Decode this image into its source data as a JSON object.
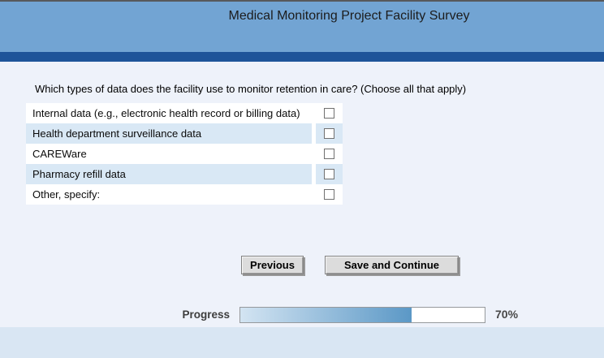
{
  "header": {
    "title": "Medical Monitoring Project Facility Survey"
  },
  "question": {
    "text": "Which types of data does the facility use to monitor retention in care? (Choose all that apply)",
    "options": [
      {
        "label": "Internal data (e.g., electronic health record or billing data)",
        "checked": false
      },
      {
        "label": "Health department surveillance data",
        "checked": false
      },
      {
        "label": "CAREWare",
        "checked": false
      },
      {
        "label": "Pharmacy refill data",
        "checked": false
      },
      {
        "label": "Other, specify:",
        "checked": false
      }
    ]
  },
  "buttons": {
    "previous": "Previous",
    "save_continue": "Save and Continue"
  },
  "progress": {
    "label": "Progress",
    "percent": 70,
    "percent_label": "70%"
  },
  "colors": {
    "header-bg": "#72a4d3",
    "accent-stripe": "#1e5499",
    "page-bg": "#eef2fa",
    "alt-row": "#d9e8f5",
    "bottom-band": "#d9e6f3",
    "progress-fill-start": "#d3e4f2",
    "progress-fill-end": "#5b98c6"
  }
}
